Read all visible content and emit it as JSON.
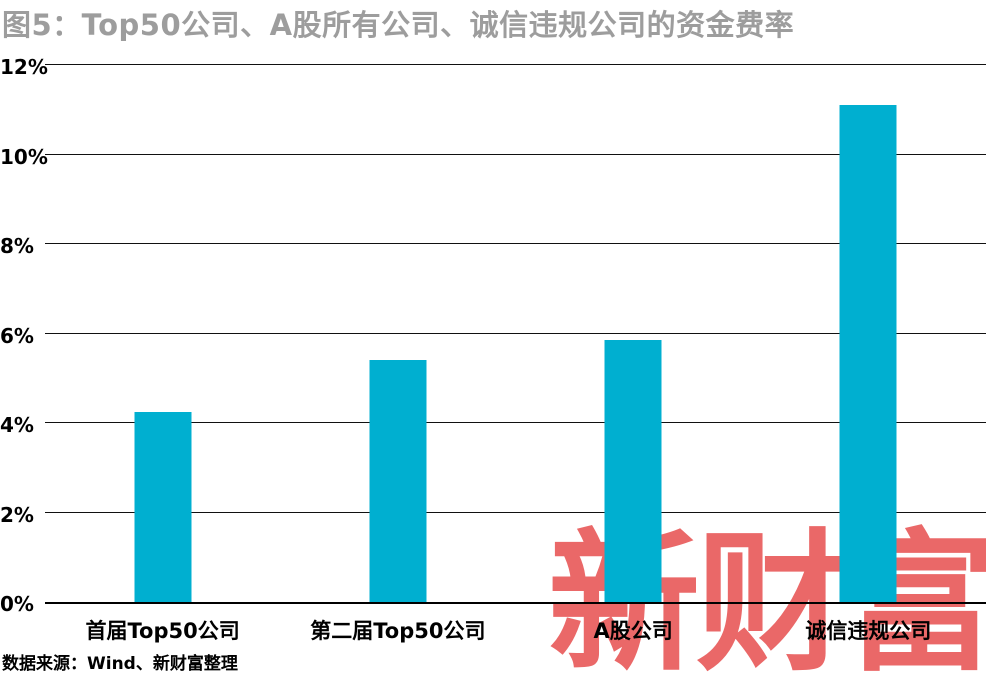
{
  "title": "图5：Top50公司、A股所有公司、诚信违规公司的资金费率",
  "source_note": "数据来源：Wind、新财富整理",
  "watermark_text": "新财富",
  "colors": {
    "bar": "#00afd0",
    "title": "#9d9d9d",
    "watermark": "rgba(231, 83, 83, 0.88)",
    "gridline": "#111111",
    "axis_text": "#000000"
  },
  "chart_data": {
    "type": "bar",
    "title": "图5：Top50公司、A股所有公司、诚信违规公司的资金费率",
    "categories": [
      "首届Top50公司",
      "第二届Top50公司",
      "A股公司",
      "诚信违规公司"
    ],
    "values": [
      4.25,
      5.4,
      5.85,
      11.1
    ],
    "unit": "%",
    "xlabel": "",
    "ylabel": "",
    "ylim": [
      0,
      12
    ],
    "ytick_values": [
      0,
      2,
      4,
      6,
      8,
      10,
      12
    ],
    "ytick_labels": [
      "0%",
      "2%",
      "4%",
      "6%",
      "8%",
      "10%",
      "12%"
    ],
    "grid": true,
    "legend": "none"
  }
}
